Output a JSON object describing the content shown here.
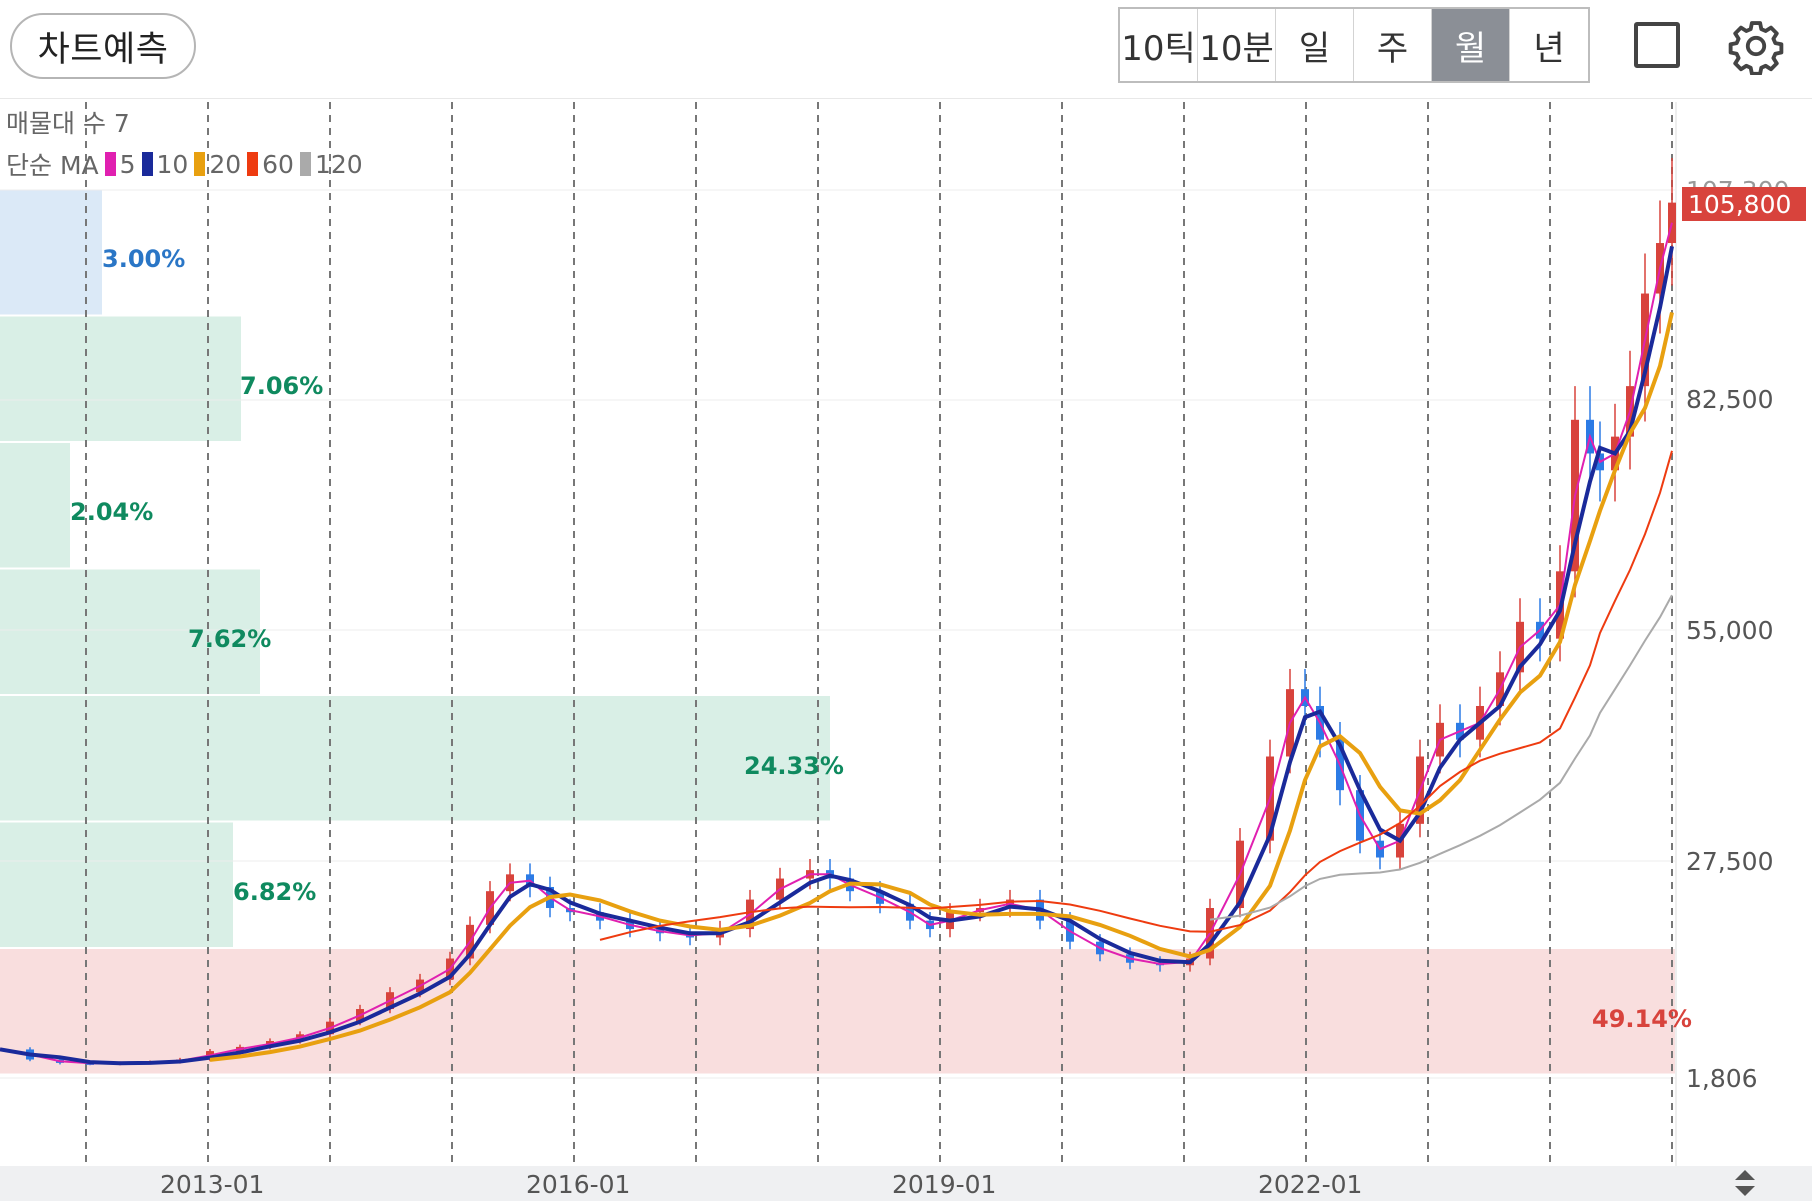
{
  "toolbar": {
    "forecast_button": "차트예측",
    "tabs": [
      {
        "label": "10틱",
        "active": false
      },
      {
        "label": "10분",
        "active": false
      },
      {
        "label": "일",
        "active": false
      },
      {
        "label": "주",
        "active": false
      },
      {
        "label": "월",
        "active": true
      },
      {
        "label": "년",
        "active": false
      }
    ],
    "fullscreen_icon": "square-icon",
    "settings_icon": "gear-icon"
  },
  "legend": {
    "volume_profile": "매물대 수 7",
    "ma_title": "단순 MA",
    "ma_periods": [
      {
        "label": "5",
        "color": "#e020b0"
      },
      {
        "label": "10",
        "color": "#1a2a9a"
      },
      {
        "label": "20",
        "color": "#e8a010"
      },
      {
        "label": "60",
        "color": "#ee3b10"
      },
      {
        "label": "120",
        "color": "#aaaaaa"
      }
    ]
  },
  "price_axis": {
    "current_price": "105,800",
    "max_label": "107,300",
    "ticks": [
      "82,500",
      "55,000",
      "27,500",
      "1,806"
    ]
  },
  "time_axis": {
    "ticks": [
      "2013-01",
      "2016-01",
      "2019-01",
      "2022-01"
    ]
  },
  "volume_profile": [
    {
      "pct": "3.00%",
      "value": 3.0,
      "color": "blue"
    },
    {
      "pct": "7.06%",
      "value": 7.06,
      "color": "green"
    },
    {
      "pct": "2.04%",
      "value": 2.04,
      "color": "green"
    },
    {
      "pct": "7.62%",
      "value": 7.62,
      "color": "green"
    },
    {
      "pct": "24.33%",
      "value": 24.33,
      "color": "green"
    },
    {
      "pct": "6.82%",
      "value": 6.82,
      "color": "green"
    },
    {
      "pct": "49.14%",
      "value": 49.14,
      "color": "red"
    }
  ],
  "colors": {
    "up": "#d8433c",
    "down": "#2c7be5",
    "band_blue": "#dbe9f7",
    "band_green": "#d9efe6",
    "band_red": "#f9dede",
    "label_blue": "#2a76c6",
    "label_green": "#0f8a5f",
    "label_red": "#d8433c"
  }
}
